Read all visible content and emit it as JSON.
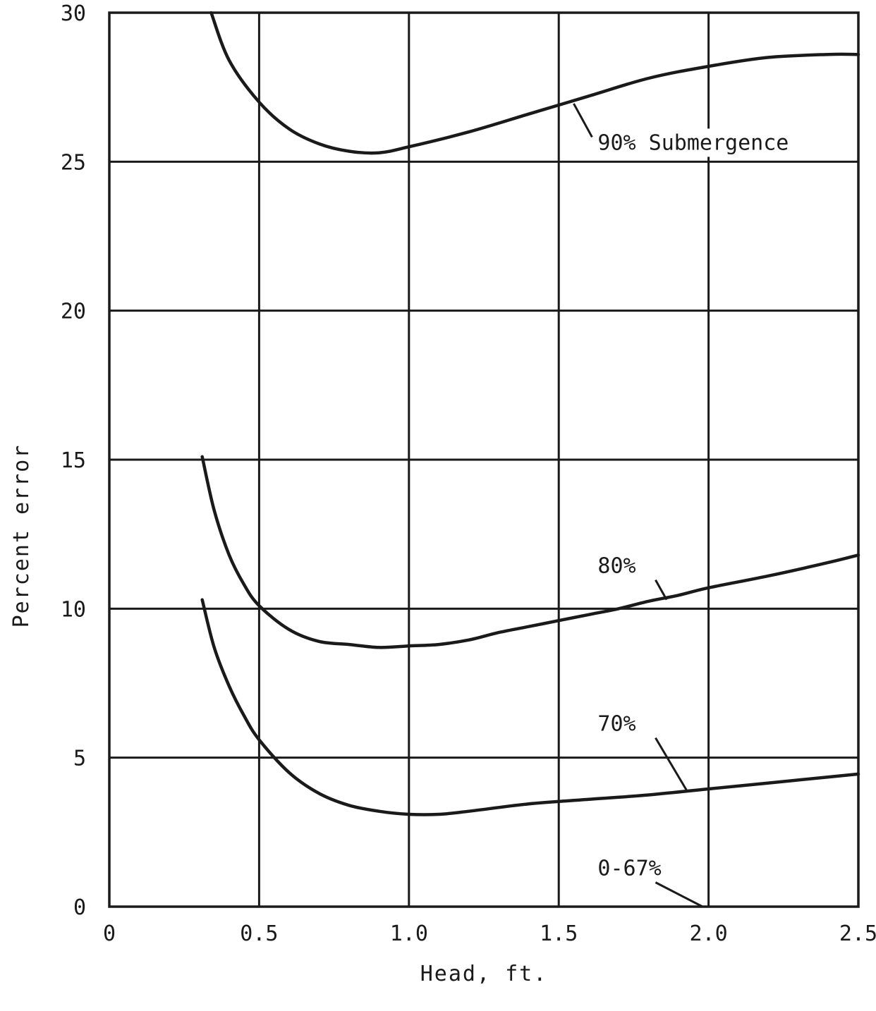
{
  "chart_data": {
    "type": "line",
    "title": "",
    "xlabel": "Head, ft.",
    "ylabel": "Percent error",
    "xlim": [
      0,
      2.5
    ],
    "ylim": [
      0,
      30
    ],
    "grid": true,
    "x_ticks": [
      {
        "value": 0,
        "label": "0"
      },
      {
        "value": 0.5,
        "label": "0.5"
      },
      {
        "value": 1.0,
        "label": "1.0"
      },
      {
        "value": 1.5,
        "label": "1.5"
      },
      {
        "value": 2.0,
        "label": "2.0"
      },
      {
        "value": 2.5,
        "label": "2.5"
      }
    ],
    "y_ticks": [
      {
        "value": 0,
        "label": "0"
      },
      {
        "value": 5,
        "label": "5"
      },
      {
        "value": 10,
        "label": "10"
      },
      {
        "value": 15,
        "label": "15"
      },
      {
        "value": 20,
        "label": "20"
      },
      {
        "value": 25,
        "label": "25"
      },
      {
        "value": 30,
        "label": "30"
      }
    ],
    "series": [
      {
        "name": "90% Submergence",
        "x": [
          0.34,
          0.4,
          0.5,
          0.6,
          0.7,
          0.8,
          0.9,
          1.0,
          1.2,
          1.4,
          1.6,
          1.8,
          2.0,
          2.2,
          2.4,
          2.5
        ],
        "y": [
          30.0,
          28.4,
          27.0,
          26.1,
          25.6,
          25.35,
          25.3,
          25.5,
          26.0,
          26.6,
          27.2,
          27.8,
          28.2,
          28.5,
          28.6,
          28.6
        ]
      },
      {
        "name": "80%",
        "x": [
          0.31,
          0.35,
          0.4,
          0.45,
          0.5,
          0.6,
          0.7,
          0.8,
          0.9,
          1.0,
          1.1,
          1.2,
          1.3,
          1.4,
          1.5,
          1.6,
          1.7,
          1.8,
          1.9,
          2.0,
          2.2,
          2.4,
          2.5
        ],
        "y": [
          15.1,
          13.3,
          11.8,
          10.8,
          10.1,
          9.3,
          8.9,
          8.8,
          8.7,
          8.75,
          8.8,
          8.95,
          9.2,
          9.4,
          9.6,
          9.8,
          10.0,
          10.25,
          10.45,
          10.7,
          11.1,
          11.55,
          11.8
        ]
      },
      {
        "name": "70%",
        "x": [
          0.31,
          0.35,
          0.4,
          0.45,
          0.5,
          0.6,
          0.7,
          0.8,
          0.9,
          1.0,
          1.1,
          1.2,
          1.4,
          1.6,
          1.8,
          2.0,
          2.2,
          2.4,
          2.5
        ],
        "y": [
          10.3,
          8.7,
          7.4,
          6.4,
          5.6,
          4.5,
          3.8,
          3.4,
          3.2,
          3.1,
          3.1,
          3.2,
          3.45,
          3.6,
          3.75,
          3.95,
          4.15,
          4.35,
          4.45
        ]
      }
    ],
    "annotations": [
      {
        "text": "90% Submergence",
        "series": "90% Submergence",
        "text_at": [
          1.63,
          25.4
        ],
        "points_to": [
          1.55,
          26.95
        ]
      },
      {
        "text": "80%",
        "series": "80%",
        "text_at": [
          1.63,
          11.2
        ],
        "points_to": [
          1.86,
          10.3
        ]
      },
      {
        "text": "70%",
        "series": "70%",
        "text_at": [
          1.63,
          5.9
        ],
        "points_to": [
          1.93,
          3.85
        ]
      },
      {
        "text": "0-67%",
        "series": "0-67%",
        "text_at": [
          1.63,
          1.05
        ],
        "points_to": [
          1.98,
          0.0
        ]
      }
    ]
  }
}
